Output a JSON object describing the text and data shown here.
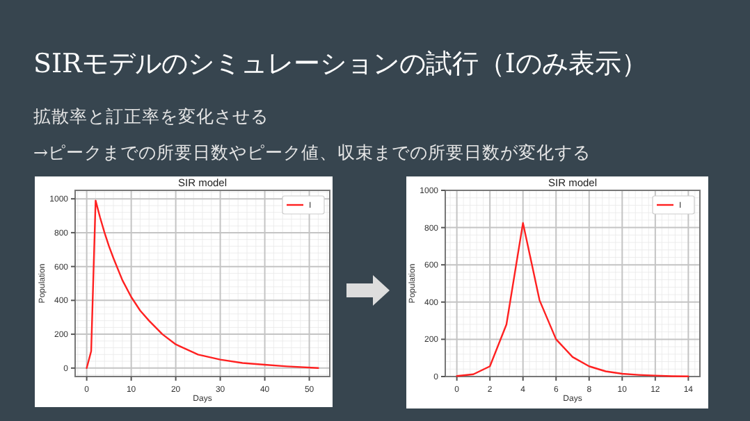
{
  "chart_data": [
    {
      "type": "other",
      "title": "SIRモデルのシミュレーションの試行（Iのみ表示）",
      "annotations": [
        "拡散率と訂正率を変化させる",
        "→ピークまでの所要日数やピーク値、収束までの所要日数が変化する"
      ]
    },
    {
      "type": "line",
      "title": "SIR model",
      "xlabel": "Days",
      "ylabel": "Population",
      "xlim": [
        -2.6,
        54.6
      ],
      "ylim": [
        -50,
        1050
      ],
      "xticks": [
        0,
        10,
        20,
        30,
        40,
        50
      ],
      "yticks": [
        0,
        200,
        400,
        600,
        800,
        1000
      ],
      "grid": true,
      "legend": "top right",
      "series": [
        {
          "name": "I",
          "color": "#ff2020",
          "x": [
            0,
            1,
            2,
            3,
            4,
            5,
            6,
            8,
            10,
            12,
            14,
            17,
            20,
            25,
            30,
            35,
            40,
            45,
            52
          ],
          "values": [
            0,
            100,
            990,
            890,
            800,
            720,
            650,
            520,
            420,
            340,
            280,
            200,
            140,
            80,
            50,
            30,
            20,
            10,
            0
          ]
        }
      ]
    },
    {
      "type": "line",
      "title": "SIR model",
      "xlabel": "Days",
      "ylabel": "Population",
      "xlim": [
        -0.7,
        14.7
      ],
      "ylim": [
        0,
        1000
      ],
      "xticks": [
        0,
        2,
        4,
        6,
        8,
        10,
        12,
        14
      ],
      "yticks": [
        0,
        200,
        400,
        600,
        800,
        1000
      ],
      "grid": true,
      "legend": "top right",
      "series": [
        {
          "name": "I",
          "color": "#ff2020",
          "x": [
            0,
            1,
            2,
            3,
            4,
            5,
            6,
            7,
            8,
            9,
            10,
            11,
            12,
            13,
            14
          ],
          "values": [
            3,
            12,
            55,
            280,
            825,
            410,
            200,
            105,
            55,
            28,
            15,
            9,
            5,
            2,
            1
          ]
        }
      ]
    }
  ]
}
